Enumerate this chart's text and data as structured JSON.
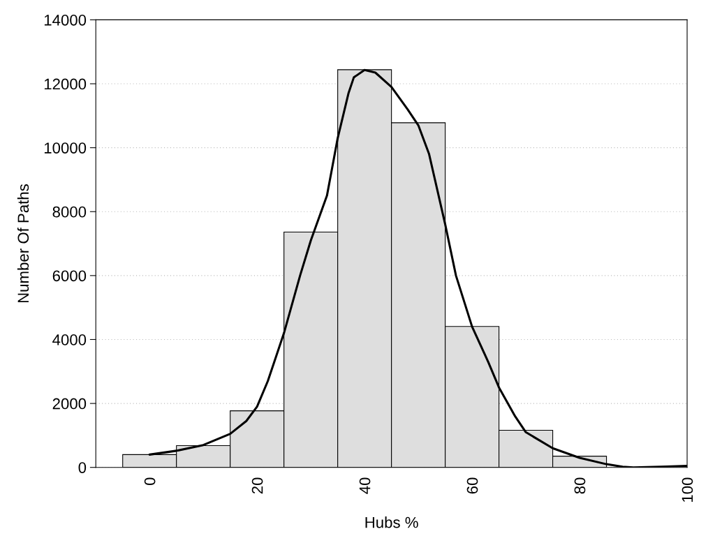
{
  "chart_data": {
    "type": "histogram",
    "xlabel": "Hubs %",
    "ylabel": "Number Of Paths",
    "bins": [
      -5,
      5,
      15,
      25,
      35,
      45,
      55,
      65,
      75,
      85
    ],
    "values": [
      400,
      680,
      1770,
      7360,
      12440,
      10780,
      4410,
      1160,
      350
    ],
    "color": "#dedede",
    "series": [
      {
        "type": "line",
        "color": "#000000",
        "x": [
          0,
          5,
          10,
          15,
          18,
          20,
          22,
          25,
          28,
          30,
          33,
          35,
          37,
          38,
          40,
          42,
          45,
          48,
          50,
          52,
          55,
          57,
          60,
          63,
          65,
          68,
          70,
          75,
          80,
          85,
          88,
          90,
          95,
          100
        ],
        "values": [
          400,
          520,
          700,
          1050,
          1450,
          1900,
          2700,
          4200,
          6000,
          7100,
          8500,
          10300,
          11700,
          12200,
          12430,
          12350,
          11900,
          11200,
          10700,
          9800,
          7600,
          6000,
          4400,
          3300,
          2500,
          1600,
          1100,
          600,
          300,
          100,
          20,
          0,
          20,
          50
        ]
      }
    ],
    "xlim": [
      -10,
      100
    ],
    "xticks": [
      0,
      20,
      40,
      60,
      80,
      100
    ],
    "ylim": [
      0,
      14000
    ],
    "yticks": [
      0,
      2000,
      4000,
      6000,
      8000,
      10000,
      12000,
      14000
    ],
    "grid": "y",
    "legend": false
  }
}
